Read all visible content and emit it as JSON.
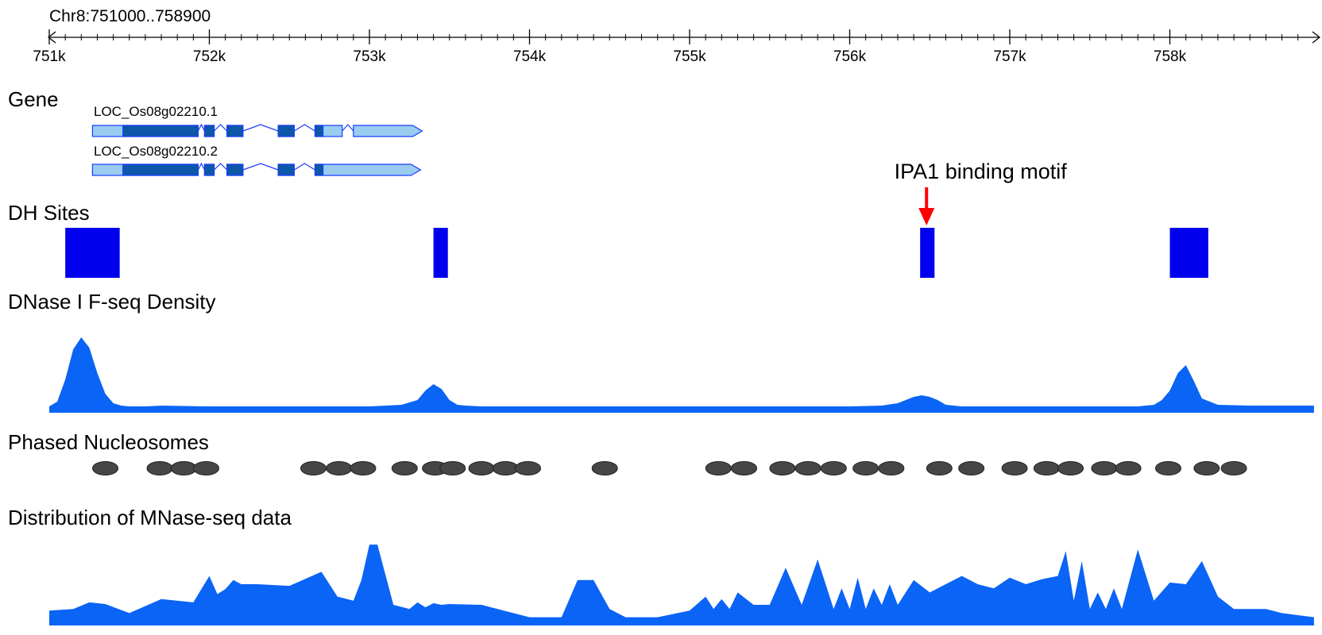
{
  "locus": "Chr8:751000..758900",
  "ruler": {
    "start": 751000,
    "end": 758900,
    "ticks": [
      751000,
      752000,
      753000,
      754000,
      755000,
      756000,
      757000,
      758000
    ],
    "tick_labels": [
      "751k",
      "752k",
      "753k",
      "754k",
      "755k",
      "756k",
      "757k",
      "758k"
    ]
  },
  "tracks": {
    "gene": {
      "label": "Gene",
      "colors": {
        "utr": "#99ccee",
        "cds": "#0d57a8",
        "line": "#1a3cff"
      },
      "transcripts": [
        {
          "name": "LOC_Os08g02210.1",
          "strand": "+",
          "exons": [
            {
              "start": 751270,
              "end": 751930,
              "cds_start": 751460,
              "cds_end": 751930
            },
            {
              "start": 751970,
              "end": 752030,
              "cds_start": 751970,
              "cds_end": 752030
            },
            {
              "start": 752110,
              "end": 752210,
              "cds_start": 752110,
              "cds_end": 752210
            },
            {
              "start": 752430,
              "end": 752530,
              "cds_start": 752430,
              "cds_end": 752530
            },
            {
              "start": 752660,
              "end": 752830,
              "cds_start": 752660,
              "cds_end": 752710
            },
            {
              "start": 752900,
              "end": 753270,
              "cds_start": null,
              "cds_end": null
            }
          ]
        },
        {
          "name": "LOC_Os08g02210.2",
          "strand": "+",
          "exons": [
            {
              "start": 751270,
              "end": 751930,
              "cds_start": 751460,
              "cds_end": 751930
            },
            {
              "start": 751970,
              "end": 752030,
              "cds_start": 751970,
              "cds_end": 752030
            },
            {
              "start": 752110,
              "end": 752210,
              "cds_start": 752110,
              "cds_end": 752210
            },
            {
              "start": 752430,
              "end": 752530,
              "cds_start": 752430,
              "cds_end": 752530
            },
            {
              "start": 752660,
              "end": 753260,
              "cds_start": 752660,
              "cds_end": 752710
            }
          ]
        }
      ]
    },
    "dh_sites": {
      "label": "DH Sites",
      "color": "#0000ee",
      "sites": [
        {
          "start": 751100,
          "end": 751440
        },
        {
          "start": 753400,
          "end": 753490
        },
        {
          "start": 756440,
          "end": 756530
        },
        {
          "start": 758000,
          "end": 758240
        }
      ],
      "annotation": {
        "text": "IPA1 binding motif",
        "position": 756480,
        "arrow_color": "#ff0000"
      }
    },
    "dnase": {
      "label": "DNase I F-seq Density",
      "color": "#0a64f5",
      "positions": [
        751000,
        751050,
        751100,
        751150,
        751200,
        751250,
        751300,
        751350,
        751400,
        751450,
        751500,
        751600,
        751700,
        752000,
        752500,
        753000,
        753100,
        753200,
        753300,
        753350,
        753400,
        753450,
        753500,
        753550,
        753600,
        753700,
        754000,
        755000,
        755500,
        756000,
        756200,
        756300,
        756400,
        756450,
        756500,
        756550,
        756600,
        756700,
        757000,
        757500,
        757800,
        757900,
        757950,
        758000,
        758050,
        758100,
        758150,
        758200,
        758300,
        758500,
        758900
      ],
      "values": [
        0.08,
        0.14,
        0.42,
        0.8,
        0.95,
        0.82,
        0.5,
        0.24,
        0.12,
        0.09,
        0.08,
        0.08,
        0.09,
        0.08,
        0.08,
        0.08,
        0.09,
        0.1,
        0.16,
        0.28,
        0.36,
        0.3,
        0.16,
        0.1,
        0.09,
        0.08,
        0.08,
        0.08,
        0.08,
        0.08,
        0.09,
        0.12,
        0.2,
        0.22,
        0.2,
        0.16,
        0.1,
        0.08,
        0.08,
        0.08,
        0.08,
        0.1,
        0.16,
        0.28,
        0.5,
        0.6,
        0.4,
        0.18,
        0.1,
        0.09,
        0.09
      ]
    },
    "nucleosomes": {
      "label": "Phased Nucleosomes",
      "color": "#464646",
      "positions": [
        751350,
        751690,
        751840,
        751980,
        752650,
        752810,
        752960,
        753220,
        753410,
        753520,
        753700,
        753850,
        753990,
        754470,
        755180,
        755340,
        755580,
        755740,
        755900,
        756100,
        756260,
        756560,
        756760,
        757030,
        757230,
        757380,
        757590,
        757740,
        757990,
        758230,
        758400
      ]
    },
    "mnase": {
      "label": "Distribution of MNase-seq data",
      "color": "#0a64f5",
      "positions": [
        751000,
        751150,
        751250,
        751350,
        751500,
        751700,
        751900,
        752000,
        752050,
        752100,
        752150,
        752200,
        752300,
        752500,
        752700,
        752800,
        752900,
        752950,
        753000,
        753050,
        753150,
        753250,
        753300,
        753350,
        753400,
        753450,
        753500,
        753700,
        754000,
        754200,
        754300,
        754400,
        754500,
        754600,
        754800,
        755000,
        755100,
        755150,
        755200,
        755250,
        755300,
        755400,
        755500,
        755600,
        755700,
        755800,
        755900,
        755950,
        756000,
        756050,
        756100,
        756150,
        756200,
        756250,
        756300,
        756400,
        756500,
        756600,
        756700,
        756800,
        756900,
        757000,
        757100,
        757200,
        757300,
        757350,
        757400,
        757450,
        757500,
        757550,
        757600,
        757650,
        757700,
        757800,
        757900,
        758000,
        758100,
        758200,
        758300,
        758400,
        758500,
        758600,
        758700,
        758900
      ],
      "values": [
        0.18,
        0.2,
        0.28,
        0.26,
        0.15,
        0.32,
        0.28,
        0.6,
        0.38,
        0.44,
        0.55,
        0.5,
        0.5,
        0.48,
        0.65,
        0.35,
        0.3,
        0.55,
        0.98,
        0.98,
        0.25,
        0.2,
        0.28,
        0.22,
        0.27,
        0.25,
        0.26,
        0.25,
        0.1,
        0.1,
        0.55,
        0.55,
        0.2,
        0.1,
        0.1,
        0.18,
        0.35,
        0.2,
        0.32,
        0.2,
        0.4,
        0.25,
        0.25,
        0.7,
        0.25,
        0.8,
        0.2,
        0.45,
        0.2,
        0.58,
        0.2,
        0.45,
        0.25,
        0.5,
        0.25,
        0.55,
        0.4,
        0.5,
        0.6,
        0.5,
        0.45,
        0.58,
        0.5,
        0.56,
        0.6,
        0.9,
        0.3,
        0.78,
        0.2,
        0.4,
        0.2,
        0.45,
        0.2,
        0.92,
        0.3,
        0.52,
        0.5,
        0.78,
        0.35,
        0.2,
        0.2,
        0.2,
        0.15,
        0.1
      ]
    }
  }
}
